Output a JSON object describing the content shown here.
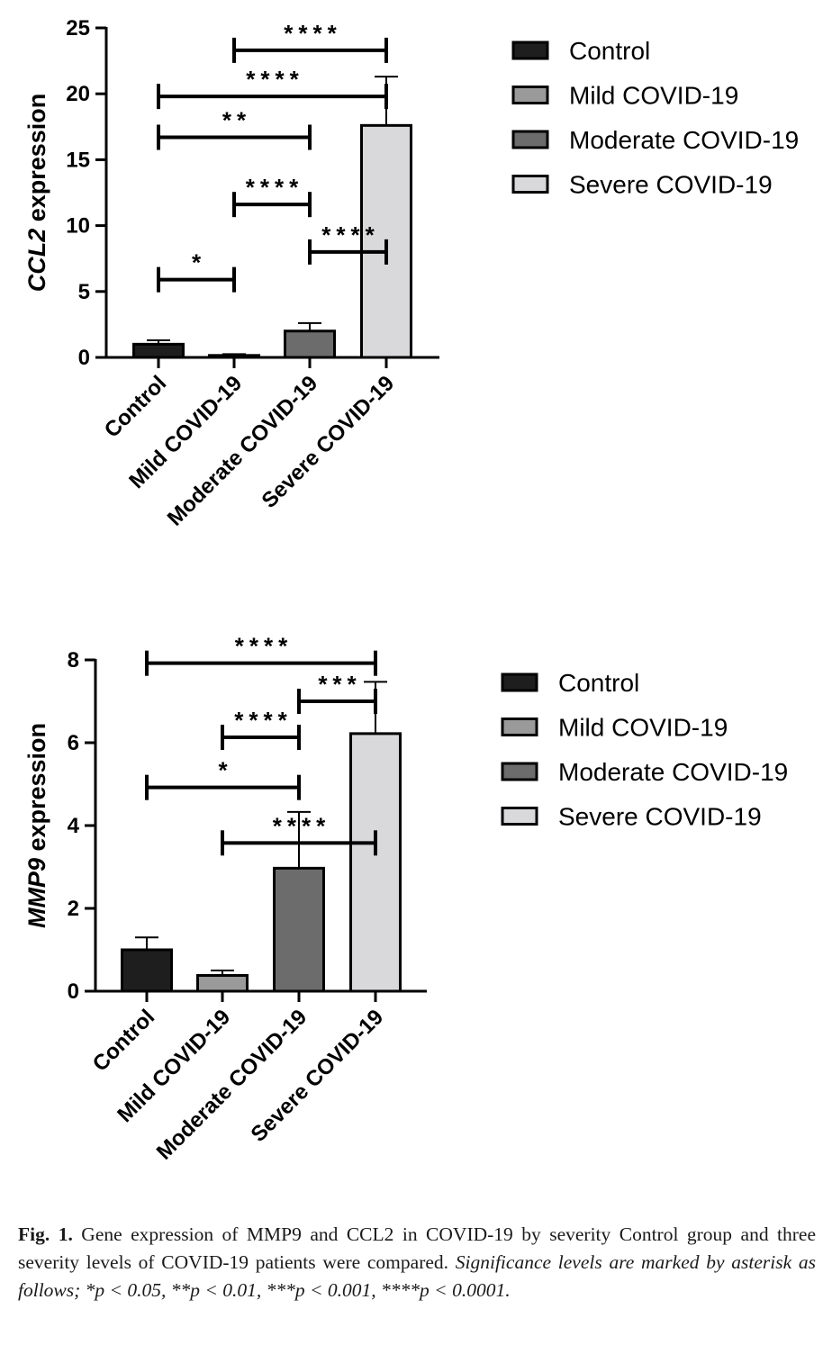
{
  "chart_data": [
    {
      "type": "bar",
      "panel": "top",
      "title": "",
      "ylabel_gene": "CCL2",
      "ylabel_suffix": " expression",
      "xlabel": "",
      "categories": [
        "Control",
        "Mild COVID-19",
        "Moderate COVID-19",
        "Severe COVID-19"
      ],
      "values": [
        1.0,
        0.15,
        2.0,
        17.6
      ],
      "errors": [
        0.3,
        0.1,
        0.6,
        3.7
      ],
      "ylim": [
        0,
        25
      ],
      "yticks": [
        0,
        5,
        10,
        15,
        20,
        25
      ],
      "bar_colors": [
        "#1e1e1e",
        "#9a9a9a",
        "#6c6c6c",
        "#d9d9db"
      ],
      "legend": {
        "placement": "top-right",
        "entries": [
          "Control",
          "Mild COVID-19",
          "Moderate COVID-19",
          "Severe COVID-19"
        ]
      },
      "significance": [
        {
          "from": 1,
          "to": 3,
          "label": "****",
          "at": 23.3
        },
        {
          "from": 0,
          "to": 3,
          "label": "****",
          "at": 19.8
        },
        {
          "from": 0,
          "to": 2,
          "label": "**",
          "at": 16.7
        },
        {
          "from": 1,
          "to": 2,
          "label": "****",
          "at": 11.6
        },
        {
          "from": 2,
          "to": 3,
          "label": "****",
          "at": 8.0
        },
        {
          "from": 0,
          "to": 1,
          "label": "*",
          "at": 5.9
        }
      ]
    },
    {
      "type": "bar",
      "panel": "bottom",
      "title": "",
      "ylabel_gene": "MMP9",
      "ylabel_suffix": " expression",
      "xlabel": "",
      "categories": [
        "Control",
        "Mild COVID-19",
        "Moderate COVID-19",
        "Severe COVID-19"
      ],
      "values": [
        1.0,
        0.38,
        2.97,
        6.22
      ],
      "errors": [
        0.3,
        0.12,
        1.36,
        1.25
      ],
      "ylim": [
        0,
        8
      ],
      "yticks": [
        0,
        2,
        4,
        6,
        8
      ],
      "bar_colors": [
        "#1e1e1e",
        "#9a9a9a",
        "#6c6c6c",
        "#d9d9db"
      ],
      "legend": {
        "placement": "top-right",
        "entries": [
          "Control",
          "Mild COVID-19",
          "Moderate COVID-19",
          "Severe COVID-19"
        ]
      },
      "significance": [
        {
          "from": 0,
          "to": 3,
          "label": "****",
          "at": 7.92
        },
        {
          "from": 2,
          "to": 3,
          "label": "***",
          "at": 7.0
        },
        {
          "from": 1,
          "to": 2,
          "label": "****",
          "at": 6.13
        },
        {
          "from": 0,
          "to": 2,
          "label": "*",
          "at": 4.92
        },
        {
          "from": 1,
          "to": 3,
          "label": "****",
          "at": 3.58
        }
      ]
    }
  ],
  "caption": {
    "label": "Fig. 1.",
    "text": "Gene expression of MMP9 and CCL2 in COVID-19 by severity Control group and three severity levels of COVID-19 patients were compared.",
    "italic": "Significance levels are marked by asterisk as follows; *p < 0.05, **p < 0.01, ***p < 0.001, ****p < 0.0001."
  }
}
